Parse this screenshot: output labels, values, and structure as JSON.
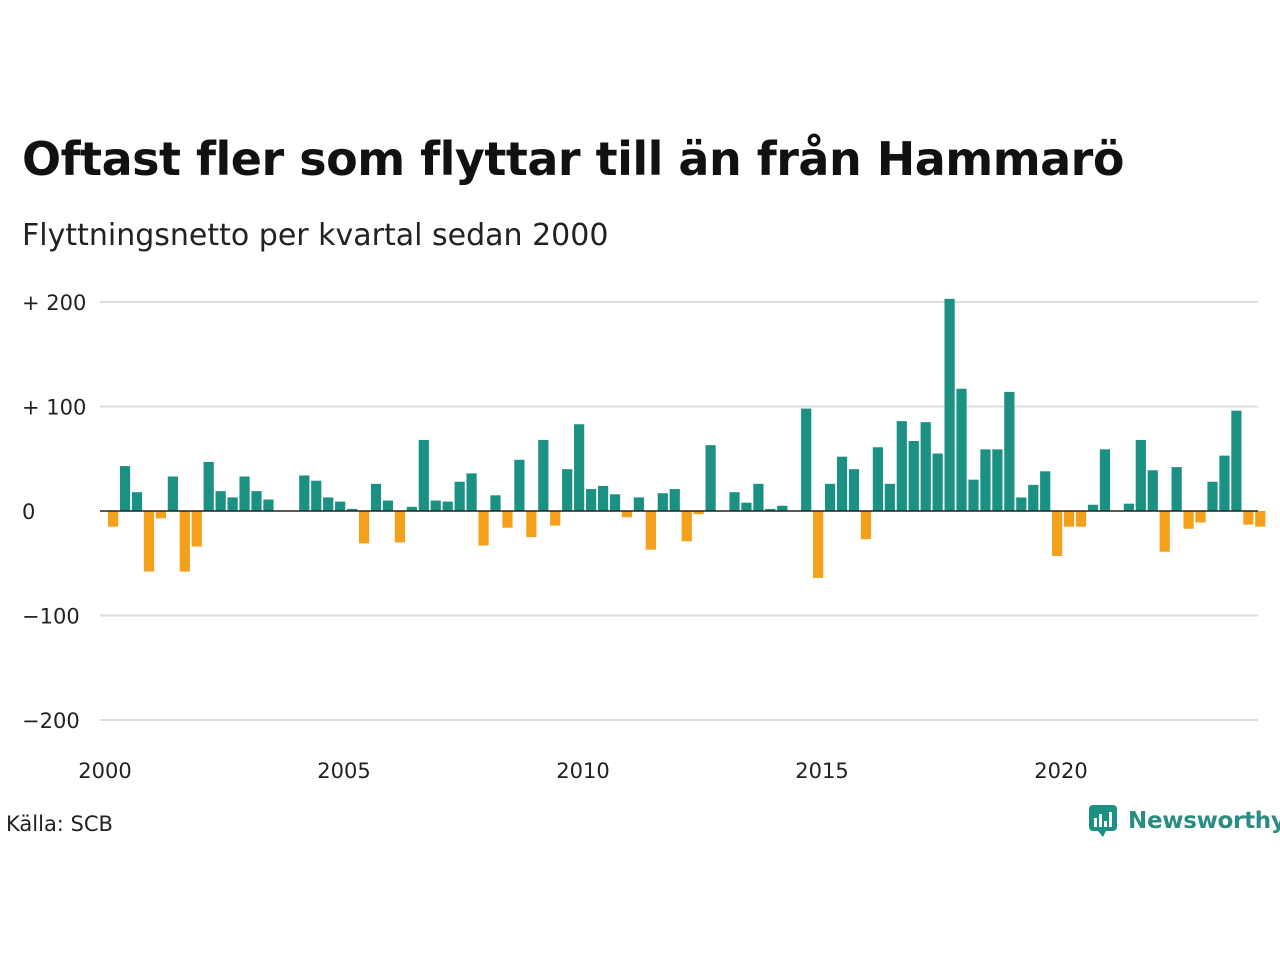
{
  "title": "Oftast fler som flyttar till än från Hammarö",
  "subtitle": "Flyttningsnetto per kvartal sedan 2000",
  "source": "Källa: SCB",
  "brand": {
    "name": "Newsworthy",
    "icon": "newsworthy-logo-icon",
    "color": "#1a9183"
  },
  "colors": {
    "positive": "#1a9183",
    "negative": "#f5a01a",
    "grid": "#dddddd",
    "zero": "#222222"
  },
  "chart_data": {
    "type": "bar",
    "ylim": [
      -200,
      205
    ],
    "yticks": [
      {
        "value": 200,
        "label": "+ 200"
      },
      {
        "value": 100,
        "label": "+ 100"
      },
      {
        "value": 0,
        "label": "0"
      },
      {
        "value": -100,
        "label": "−100"
      },
      {
        "value": -200,
        "label": "−200"
      }
    ],
    "xticks": [
      "2000",
      "2005",
      "2010",
      "2015",
      "2020"
    ],
    "start_year": 2000,
    "values": [
      -15,
      43,
      18,
      -58,
      -7,
      33,
      -58,
      -34,
      47,
      19,
      13,
      33,
      19,
      11,
      0,
      0,
      34,
      29,
      13,
      9,
      2,
      -31,
      26,
      10,
      -30,
      4,
      68,
      10,
      9,
      28,
      36,
      -33,
      15,
      -16,
      49,
      -25,
      68,
      -14,
      40,
      83,
      21,
      24,
      16,
      -6,
      13,
      -37,
      17,
      21,
      -29,
      -3,
      63,
      0,
      18,
      8,
      26,
      2,
      5,
      0,
      98,
      -64,
      26,
      52,
      40,
      -27,
      61,
      26,
      86,
      67,
      85,
      55,
      203,
      117,
      30,
      59,
      59,
      114,
      13,
      25,
      38,
      -43,
      -15,
      -15,
      6,
      59,
      0,
      7,
      68,
      39,
      -39,
      42,
      -17,
      -11,
      28,
      53,
      96,
      -13,
      -15
    ]
  }
}
